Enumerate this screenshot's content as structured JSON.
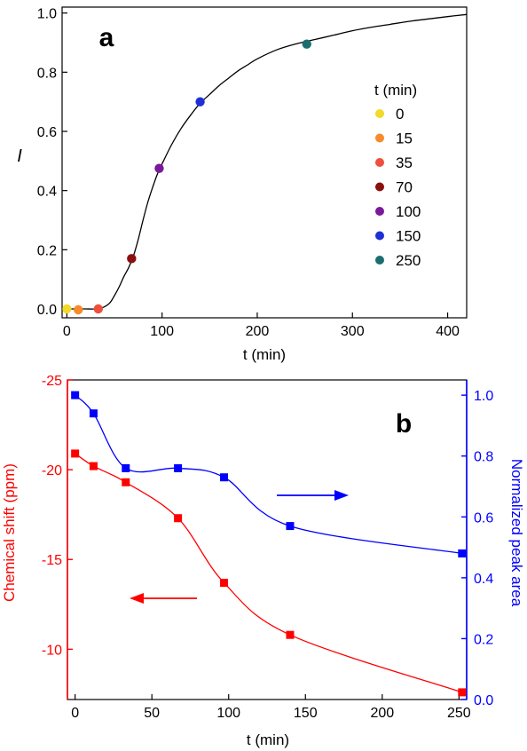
{
  "colors": {
    "axis": "#000000",
    "curve": "#000000",
    "red": "#ff0000",
    "blue": "#0000ff"
  },
  "chart_data": [
    {
      "type": "line",
      "panel_label": "a",
      "xlabel": "t (min)",
      "ylabel": "I",
      "xlim": [
        -5,
        420
      ],
      "ylim": [
        -0.03,
        1.02
      ],
      "x_ticks": [
        0,
        100,
        200,
        300,
        400
      ],
      "x_tick_labels": [
        "0",
        "100",
        "200",
        "300",
        "400"
      ],
      "y_ticks": [
        0.0,
        0.2,
        0.4,
        0.6,
        0.8,
        1.0
      ],
      "y_tick_labels": [
        "0.0",
        "0.2",
        "0.4",
        "0.6",
        "0.8",
        "1.0"
      ],
      "curve": {
        "x": [
          0,
          10,
          20,
          30,
          38,
          45,
          50,
          55,
          60,
          65,
          70,
          75,
          80,
          85,
          90,
          95,
          100,
          110,
          120,
          130,
          140,
          150,
          160,
          170,
          180,
          190,
          200,
          220,
          240,
          260,
          280,
          300,
          320,
          340,
          360,
          380,
          400,
          420
        ],
        "y": [
          0.0,
          0.0,
          0.0,
          0.0,
          0.005,
          0.02,
          0.045,
          0.075,
          0.11,
          0.14,
          0.18,
          0.235,
          0.3,
          0.36,
          0.41,
          0.455,
          0.49,
          0.555,
          0.61,
          0.655,
          0.695,
          0.725,
          0.755,
          0.78,
          0.805,
          0.825,
          0.845,
          0.875,
          0.895,
          0.91,
          0.925,
          0.94,
          0.952,
          0.962,
          0.972,
          0.98,
          0.988,
          0.995
        ]
      },
      "legend_title": "t (min)",
      "legend_placement": "right",
      "markers": [
        {
          "label": "0",
          "x": 0,
          "y": 0.0,
          "color": "#f2d92a"
        },
        {
          "label": "15",
          "x": 12,
          "y": -0.003,
          "color": "#f78a2a"
        },
        {
          "label": "35",
          "x": 33,
          "y": 0.0,
          "color": "#ef4f3c"
        },
        {
          "label": "70",
          "x": 68,
          "y": 0.17,
          "color": "#8c0f0f"
        },
        {
          "label": "100",
          "x": 97,
          "y": 0.475,
          "color": "#7a1a9a"
        },
        {
          "label": "150",
          "x": 140,
          "y": 0.7,
          "color": "#1f2fd6"
        },
        {
          "label": "250",
          "x": 252,
          "y": 0.895,
          "color": "#1b6e6e"
        }
      ]
    },
    {
      "type": "line",
      "panel_label": "b",
      "xlabel": "t (min)",
      "xlim": [
        -5,
        255
      ],
      "x_ticks": [
        0,
        50,
        100,
        150,
        200,
        250
      ],
      "x_tick_labels": [
        "0",
        "50",
        "100",
        "150",
        "200",
        "250"
      ],
      "ylabel_left": "Chemical shift (ppm)",
      "ylim_left": [
        -7.2,
        -25
      ],
      "y_left_ticks": [
        -10,
        -15,
        -20,
        -25
      ],
      "y_left_tick_labels": [
        "-10",
        "-15",
        "-20",
        "-25"
      ],
      "ylabel_right": "Normalized peak area",
      "ylim_right": [
        0,
        1.05
      ],
      "y_right_ticks": [
        0.0,
        0.2,
        0.4,
        0.6,
        0.8,
        1.0
      ],
      "y_right_tick_labels": [
        "0.0",
        "0.2",
        "0.4",
        "0.6",
        "0.8",
        "1.0"
      ],
      "series": [
        {
          "axis": "left",
          "color": "#ff0000",
          "x": [
            0,
            12,
            33,
            67,
            97,
            140,
            252
          ],
          "y": [
            -20.9,
            -20.2,
            -19.3,
            -17.3,
            -13.7,
            -10.8,
            -7.6
          ]
        },
        {
          "axis": "right",
          "color": "#0000ff",
          "x": [
            0,
            12,
            33,
            67,
            97,
            140,
            252
          ],
          "y": [
            1.0,
            0.94,
            0.76,
            0.76,
            0.73,
            0.57,
            0.48
          ]
        }
      ],
      "annotations": [
        {
          "type": "arrow",
          "direction": "left",
          "color": "#ff0000",
          "near_series": 0
        },
        {
          "type": "arrow",
          "direction": "right",
          "color": "#0000ff",
          "near_series": 1
        }
      ]
    }
  ]
}
